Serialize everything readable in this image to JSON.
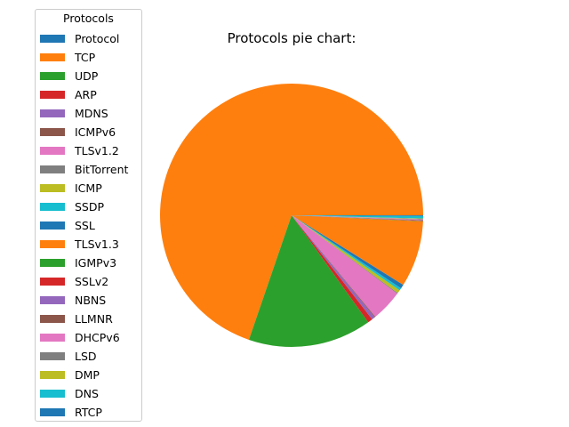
{
  "chart_data": {
    "type": "pie",
    "title": "Protocols pie chart:",
    "legend_title": "Protocols",
    "legend_position": "left",
    "labels": [
      "Protocol",
      "TCP",
      "UDP",
      "ARP",
      "MDNS",
      "ICMPv6",
      "TLSv1.2",
      "BitTorrent",
      "ICMP",
      "SSDP",
      "SSL",
      "TLSv1.3",
      "IGMPv3",
      "SSLv2",
      "NBNS",
      "LLMNR",
      "DHCPv6",
      "LSD",
      "DMP",
      "DNS",
      "RTCP"
    ],
    "values": [
      0.0,
      70.4,
      15.3,
      0.6,
      0.4,
      0.1,
      3.9,
      0.1,
      0.4,
      0.3,
      0.5,
      8.2,
      0.05,
      0.05,
      0.05,
      0.05,
      0.05,
      0.05,
      0.05,
      0.3,
      0.1
    ],
    "start_angle_deg": 0,
    "direction": "counterclockwise"
  },
  "colors": [
    "#1f77b4",
    "#ff7f0e",
    "#2ca02c",
    "#d62728",
    "#9467bd",
    "#8c564b",
    "#e377c2",
    "#7f7f7f",
    "#bcbd22",
    "#17becf"
  ]
}
